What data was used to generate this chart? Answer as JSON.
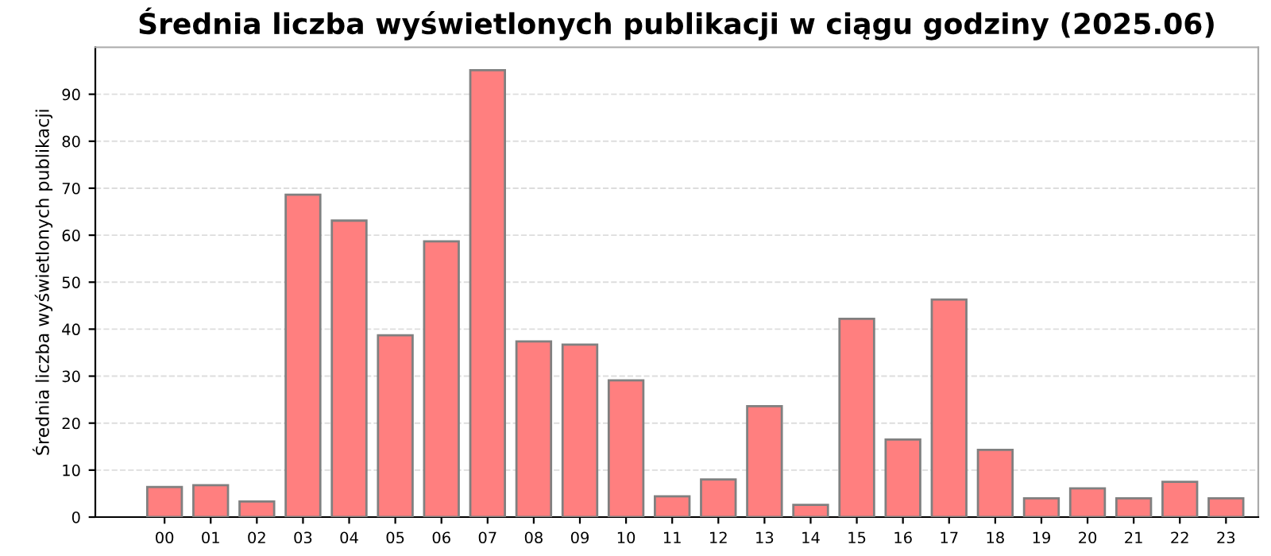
{
  "chart_data": {
    "type": "bar",
    "title": "Średnia liczba wyświetlonych publikacji w ciągu godziny (2025.06)",
    "ylabel": "Średnia liczba wyświetlonych publikacji",
    "categories": [
      "00",
      "01",
      "02",
      "03",
      "04",
      "05",
      "06",
      "07",
      "08",
      "09",
      "10",
      "11",
      "12",
      "13",
      "14",
      "15",
      "16",
      "17",
      "18",
      "19",
      "20",
      "21",
      "22",
      "23"
    ],
    "values": [
      6.4,
      6.8,
      3.3,
      68.6,
      63.1,
      38.7,
      58.7,
      95.1,
      37.4,
      36.7,
      29.1,
      4.4,
      8.0,
      23.6,
      2.6,
      42.2,
      16.5,
      46.3,
      14.3,
      4.0,
      6.1,
      4.0,
      7.5,
      4.0
    ],
    "color": "#ff7f7f",
    "ylim": [
      0,
      100
    ],
    "yticks": [
      0,
      10,
      20,
      30,
      40,
      50,
      60,
      70,
      80,
      90
    ],
    "grid": "y",
    "legend": false
  }
}
